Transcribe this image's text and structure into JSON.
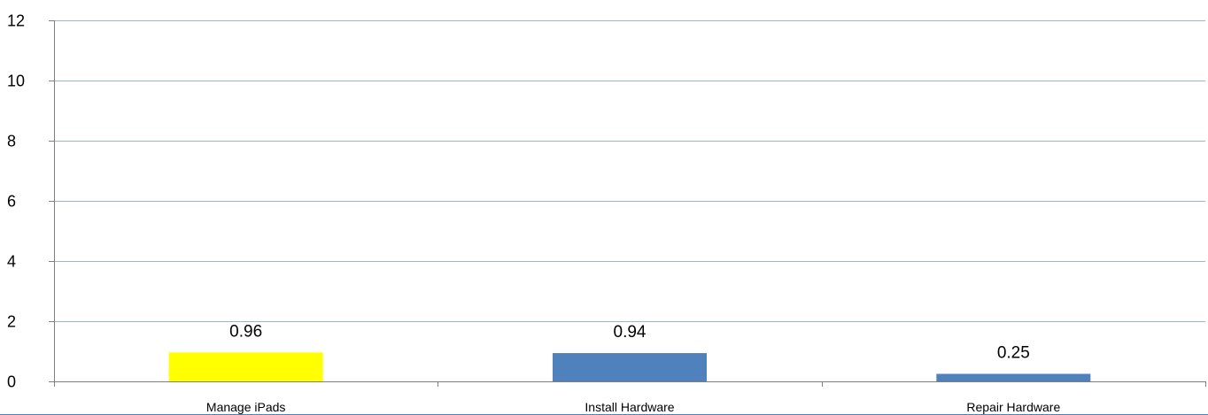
{
  "chart_data": {
    "type": "bar",
    "title": "",
    "xlabel": "",
    "ylabel": "",
    "categories": [
      "Manage iPads",
      "Install Hardware",
      "Repair Hardware"
    ],
    "values": [
      0.96,
      0.94,
      0.25
    ],
    "value_labels": [
      "0.96",
      "0.94",
      "0.25"
    ],
    "bar_colors": [
      "#ffff00",
      "#4f81bd",
      "#4f81bd"
    ],
    "ylim": [
      0,
      12
    ],
    "yticks": [
      0,
      2,
      4,
      6,
      8,
      10,
      12
    ],
    "grid": true,
    "legend": "none"
  }
}
